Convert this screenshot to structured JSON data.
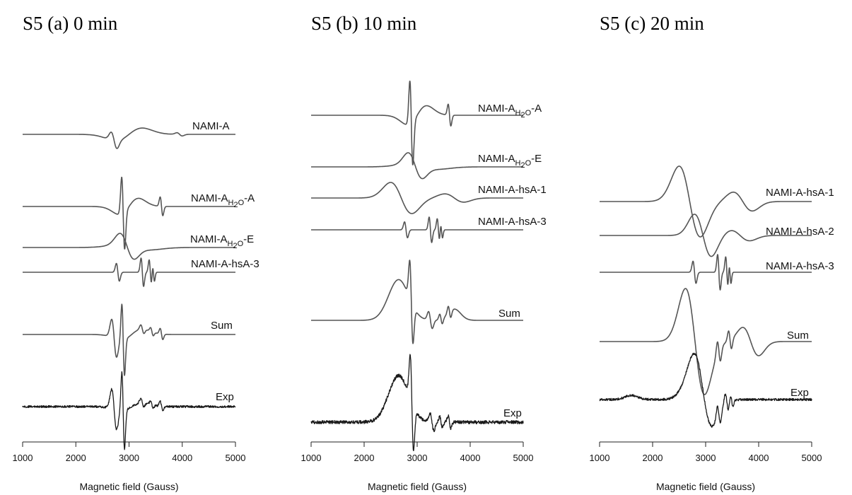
{
  "chart_data": [
    {
      "type": "line",
      "title": "S5 (a) 0 min",
      "xlabel": "Magnetic field (Gauss)",
      "xlim": [
        1000,
        5000
      ],
      "x_ticks": [
        "1000",
        "2000",
        "3000",
        "4000",
        "5000"
      ],
      "series": [
        {
          "name": "NAMI-A",
          "kind": "nami-a"
        },
        {
          "name": "NAMI-A",
          "subscript": "H2O",
          "suffix": "-A",
          "kind": "h2o-a"
        },
        {
          "name": "NAMI-A",
          "subscript": "H2O",
          "suffix": "-E",
          "kind": "h2o-e"
        },
        {
          "name": "NAMI-A-hsA-3",
          "kind": "hsa-3"
        },
        {
          "name": "Sum",
          "kind": "sum-a"
        },
        {
          "name": "Exp",
          "kind": "exp-a"
        }
      ]
    },
    {
      "type": "line",
      "title": "S5 (b) 10 min",
      "xlabel": "Magnetic field (Gauss)",
      "xlim": [
        1000,
        5000
      ],
      "x_ticks": [
        "1000",
        "2000",
        "3000",
        "4000",
        "5000"
      ],
      "series": [
        {
          "name": "NAMI-A",
          "subscript": "H2O",
          "suffix": "-A",
          "kind": "h2o-a"
        },
        {
          "name": "NAMI-A",
          "subscript": "H2O",
          "suffix": "-E",
          "kind": "h2o-e"
        },
        {
          "name": "NAMI-A-hsA-1",
          "kind": "hsa-1"
        },
        {
          "name": "NAMI-A-hsA-3",
          "kind": "hsa-3"
        },
        {
          "name": "Sum",
          "kind": "sum-b"
        },
        {
          "name": "Exp",
          "kind": "exp-b"
        }
      ]
    },
    {
      "type": "line",
      "title": "S5 (c) 20 min",
      "xlabel": "Magnetic field (Gauss)",
      "xlim": [
        1000,
        5000
      ],
      "x_ticks": [
        "1000",
        "2000",
        "3000",
        "4000",
        "5000"
      ],
      "series": [
        {
          "name": "NAMI-A-hsA-1",
          "kind": "hsa-1"
        },
        {
          "name": "NAMI-A-hsA-2",
          "kind": "hsa-2"
        },
        {
          "name": "NAMI-A-hsA-3",
          "kind": "hsa-3"
        },
        {
          "name": "Sum",
          "kind": "sum-c"
        },
        {
          "name": "Exp",
          "kind": "exp-c"
        }
      ]
    }
  ]
}
